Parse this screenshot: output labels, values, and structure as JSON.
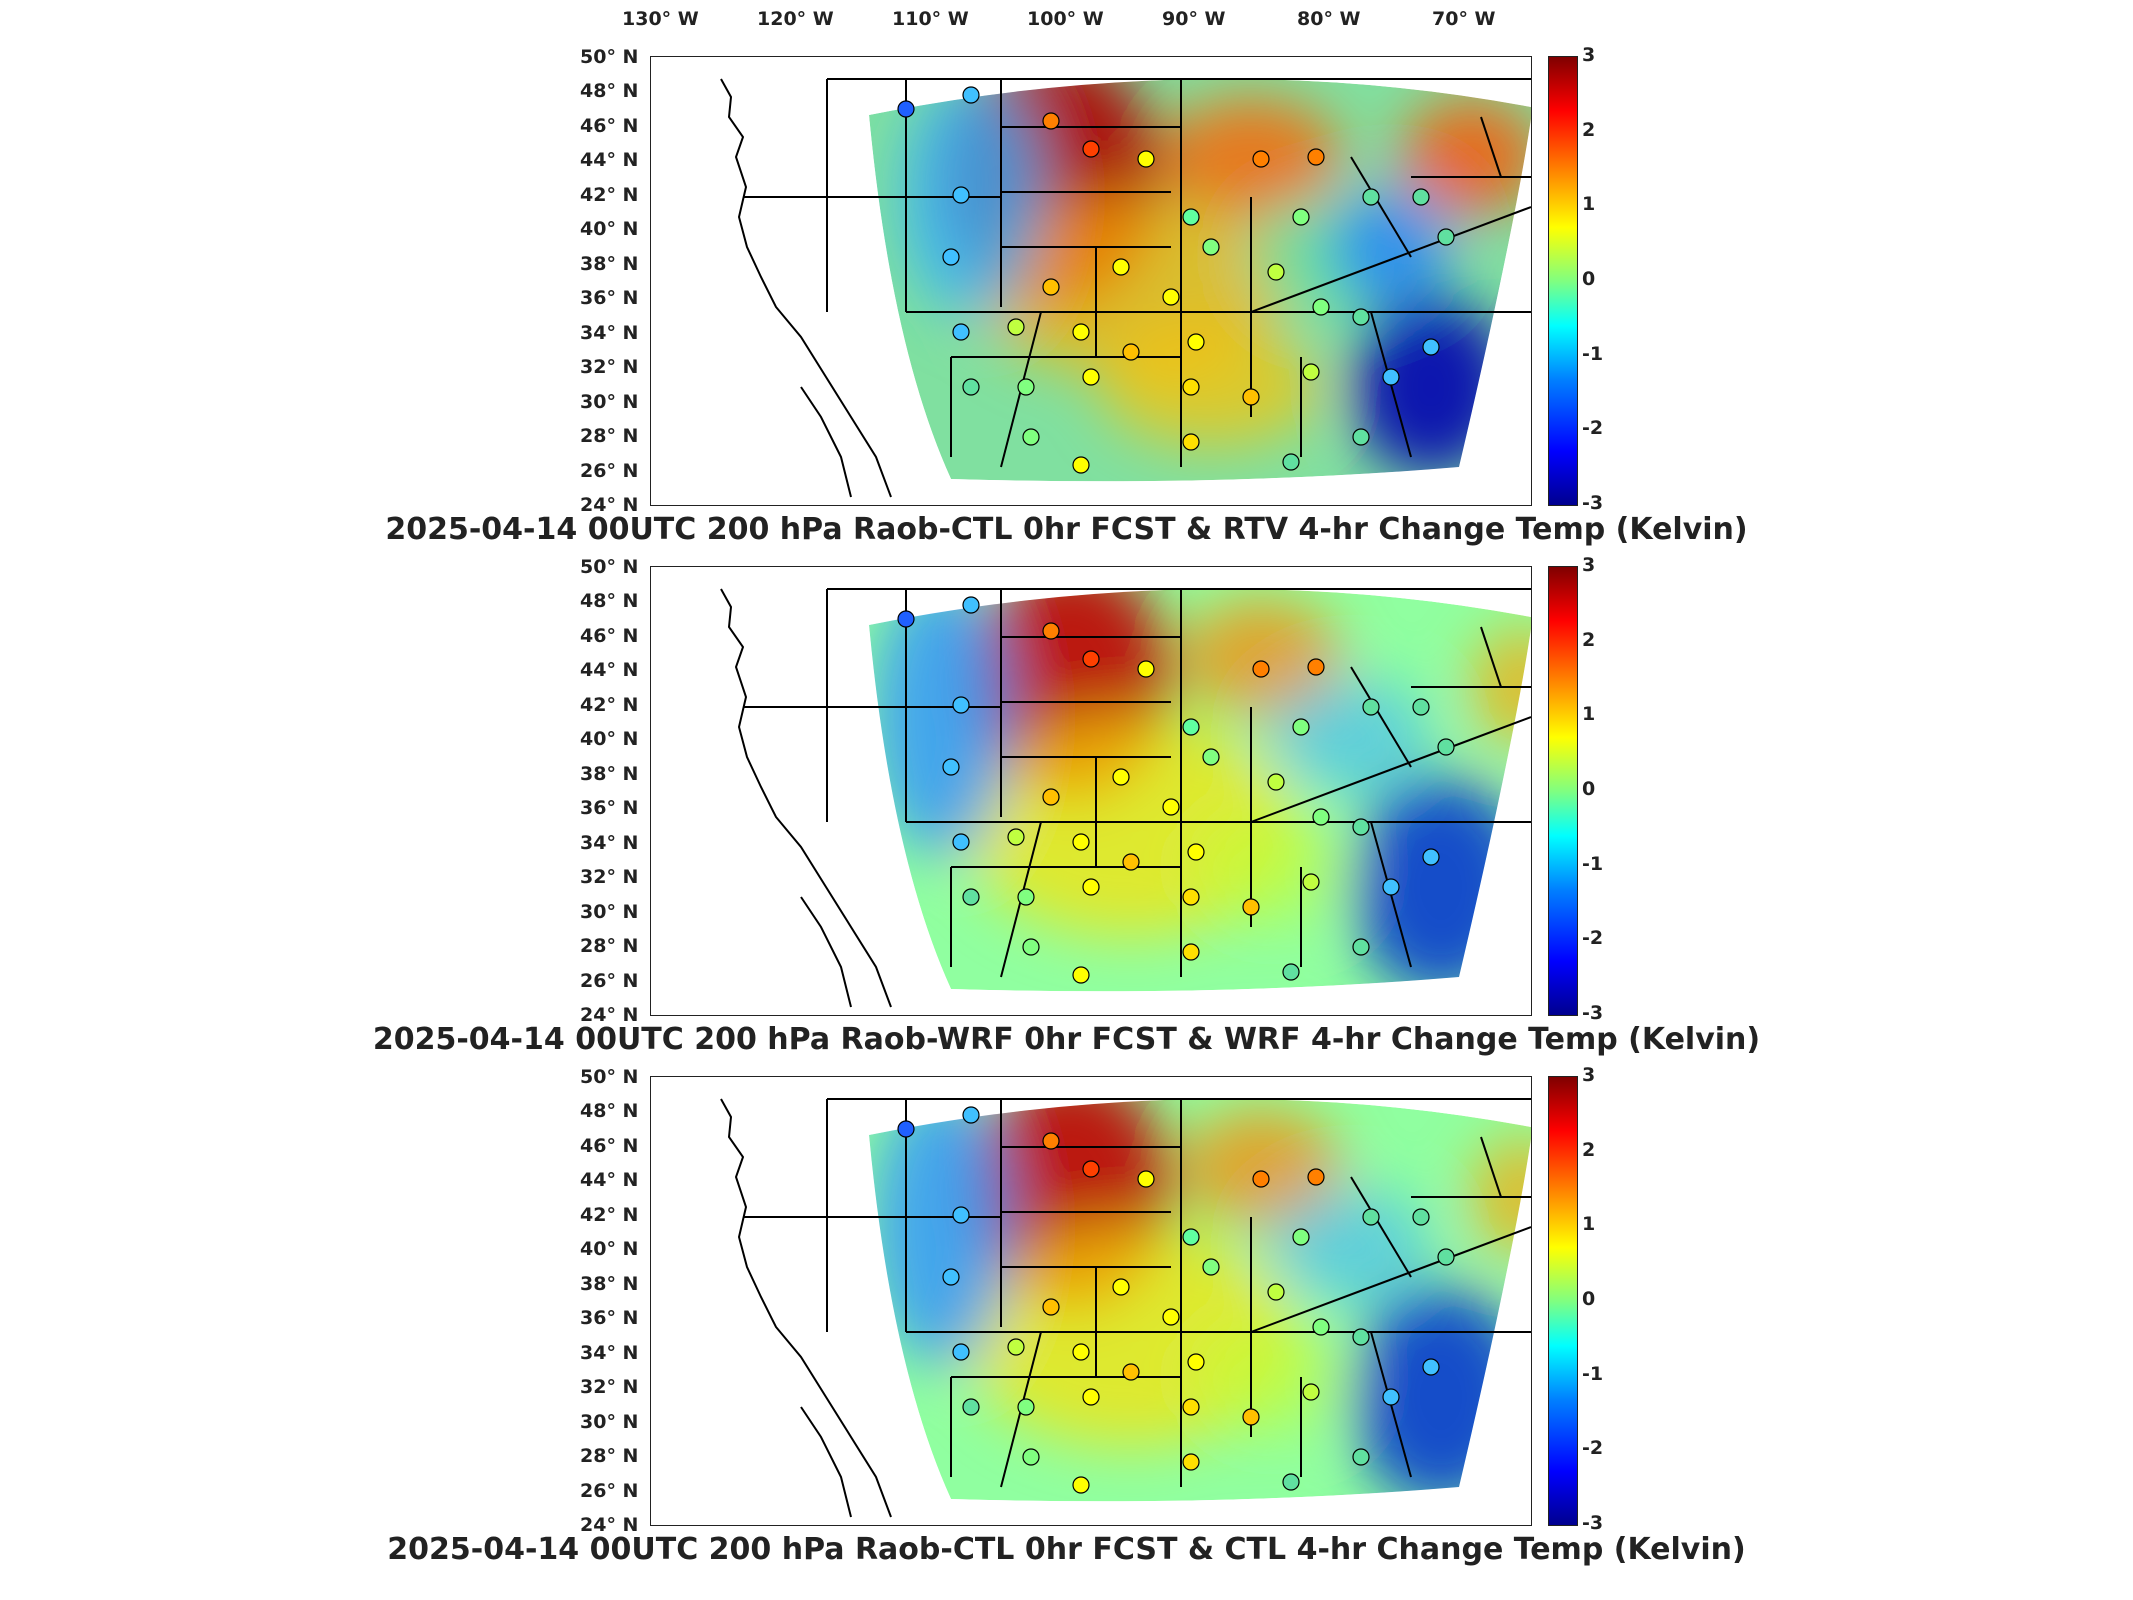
{
  "lon_labels": [
    "130° W",
    "120° W",
    "110° W",
    "100° W",
    "90° W",
    "80° W",
    "70° W"
  ],
  "lat_labels": [
    "50° N",
    "48° N",
    "46° N",
    "44° N",
    "42° N",
    "40° N",
    "38° N",
    "36° N",
    "34° N",
    "32° N",
    "30° N",
    "28° N",
    "26° N",
    "24° N"
  ],
  "colorbar": {
    "ticks": [
      "3",
      "2",
      "1",
      "0",
      "-1",
      "-2",
      "-3"
    ],
    "min": -3,
    "max": 3
  },
  "panels": [
    {
      "title": "2025-04-14 00UTC 200 hPa Raob-CTL 0hr FCST & RTV 4-hr Change Temp (Kelvin)"
    },
    {
      "title": "2025-04-14 00UTC 200 hPa Raob-WRF 0hr FCST & WRF 4-hr Change Temp (Kelvin)"
    },
    {
      "title": "2025-04-14 00UTC 200 hPa Raob-CTL 0hr FCST & CTL 4-hr Change Temp (Kelvin)"
    }
  ],
  "colors": {
    "high": "#b00000",
    "mid": "#ffff00",
    "zero": "#40ffb0",
    "low": "#0000b0"
  }
}
